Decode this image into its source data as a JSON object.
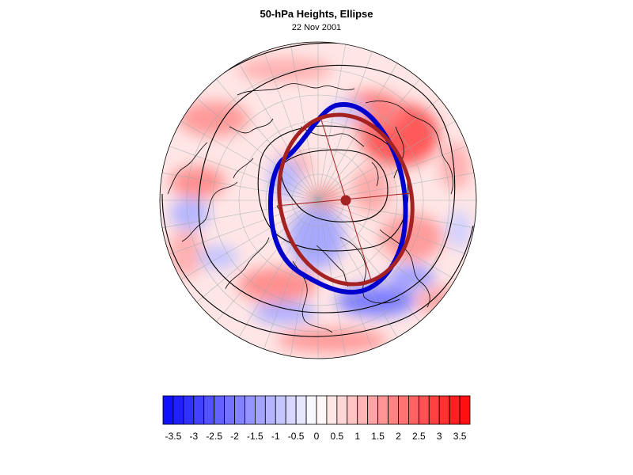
{
  "title": "50-hPa Heights, Ellipse",
  "subtitle": "22 Nov 2001",
  "colors": {
    "negative_max": "#1010ff",
    "positive_max": "#ff1010",
    "contour": "#000000",
    "ellipse_fit": "#a52222",
    "ellipse_obs": "#0000cc"
  },
  "colorbar": {
    "min": -3.75,
    "max": 3.75,
    "step": 0.25,
    "labels": [
      "-3.5",
      "-3",
      "-2.5",
      "-2",
      "-1.5",
      "-1",
      "-0.5",
      "0",
      "0.5",
      "1",
      "1.5",
      "2",
      "2.5",
      "3",
      "3.5"
    ]
  }
}
